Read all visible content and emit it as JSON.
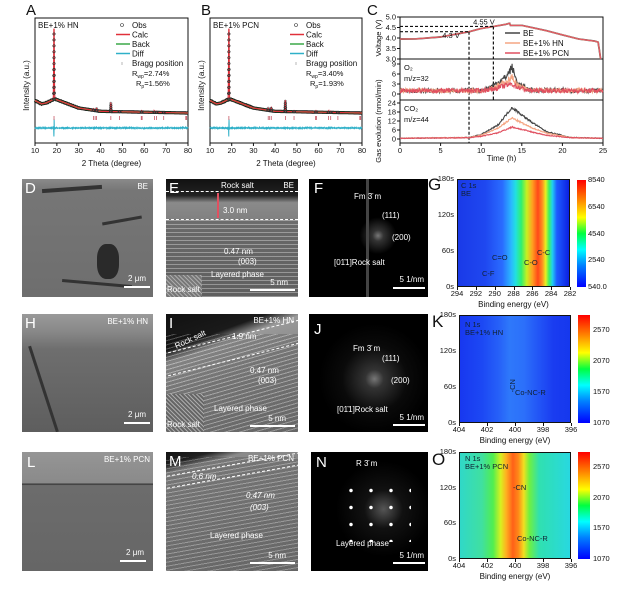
{
  "panel_labels": [
    "A",
    "B",
    "C",
    "D",
    "E",
    "F",
    "G",
    "H",
    "I",
    "J",
    "K",
    "L",
    "M",
    "N",
    "O"
  ],
  "colors": {
    "obs": "#333333",
    "calc": "#e0303a",
    "back": "#3aa848",
    "diff": "#2fb0c8",
    "bragg": "#c04050",
    "BE": "#444444",
    "HN": "#f4a582",
    "PCN": "#e05060"
  },
  "chart_data": [
    {
      "id": "A",
      "type": "line",
      "sample_label": "BE+1% HN",
      "xlabel": "2 Theta (degree)",
      "ylabel": "Intensity (a.u.)",
      "xlim": [
        10,
        80
      ],
      "xticks": [
        "10",
        "20",
        "30",
        "40",
        "50",
        "60",
        "70",
        "80"
      ],
      "legend": [
        "Obs",
        "Calc",
        "Back",
        "Diff",
        "Bragg position"
      ],
      "legend_position": "top-right",
      "rwp": "R_wp=2.74%",
      "rp": "R_p=1.56%",
      "background": [
        [
          10,
          15
        ],
        [
          13,
          11
        ],
        [
          15,
          12
        ],
        [
          19,
          17
        ],
        [
          24,
          12
        ],
        [
          30,
          6
        ],
        [
          40,
          2
        ],
        [
          80,
          0
        ]
      ],
      "peaks": [
        [
          18.7,
          100
        ],
        [
          36.8,
          2
        ],
        [
          38.2,
          3
        ],
        [
          44.7,
          10
        ],
        [
          48.7,
          1
        ],
        [
          58.8,
          2
        ],
        [
          64.6,
          2
        ],
        [
          65.6,
          1.5
        ],
        [
          68.9,
          1
        ]
      ],
      "bragg_positions": [
        18.7,
        36.8,
        37.5,
        38.2,
        44.7,
        48.7,
        58.6,
        59.0,
        64.6,
        65.6,
        68.9,
        79.0,
        79.4
      ]
    },
    {
      "id": "B",
      "type": "line",
      "sample_label": "BE+1% PCN",
      "xlabel": "2 Theta (degree)",
      "ylabel": "Intensity (a.u.)",
      "xlim": [
        10,
        80
      ],
      "xticks": [
        "10",
        "20",
        "30",
        "40",
        "50",
        "60",
        "70",
        "80"
      ],
      "legend": [
        "Obs",
        "Calc",
        "Back",
        "Diff",
        "Bragg position"
      ],
      "legend_position": "top-right",
      "rwp": "R_wp=3.40%",
      "rp": "R_p=1.93%",
      "background": [
        [
          10,
          15
        ],
        [
          13,
          11
        ],
        [
          15,
          12
        ],
        [
          19,
          17
        ],
        [
          24,
          12
        ],
        [
          30,
          6
        ],
        [
          40,
          2
        ],
        [
          80,
          0
        ]
      ],
      "peaks": [
        [
          18.7,
          100
        ],
        [
          36.8,
          2.5
        ],
        [
          38.2,
          4
        ],
        [
          44.7,
          13
        ],
        [
          48.7,
          1.5
        ],
        [
          58.8,
          2
        ],
        [
          64.6,
          2
        ],
        [
          65.6,
          1.5
        ],
        [
          68.9,
          1
        ]
      ],
      "bragg_positions": [
        18.7,
        36.8,
        37.5,
        38.2,
        44.7,
        48.7,
        58.6,
        59.0,
        64.6,
        65.6,
        68.9,
        79.0,
        79.4
      ]
    },
    {
      "id": "C",
      "type": "line",
      "xlabel": "Time (h)",
      "xlim": [
        0,
        25
      ],
      "xticks": [
        "0",
        "5",
        "10",
        "15",
        "20",
        "25"
      ],
      "voltage": {
        "ylabel": "Voltage (V)",
        "ylim": [
          3.0,
          5.0
        ],
        "yticks": [
          "3.0",
          "3.5",
          "4.0",
          "4.5",
          "5.0"
        ],
        "x": [
          0,
          2,
          5,
          8.5,
          10,
          11.5,
          13,
          13.5,
          13.6,
          15,
          18,
          20,
          22,
          24,
          24.4,
          24.6,
          24.7
        ],
        "y": [
          3.95,
          3.96,
          4.05,
          4.3,
          4.45,
          4.55,
          4.65,
          4.7,
          4.6,
          4.6,
          4.35,
          4.15,
          3.95,
          3.85,
          3.8,
          3.3,
          3.0
        ],
        "annotations": [
          "4.55 V",
          "4.3 V"
        ]
      },
      "gas_ylabel": "Gas evolution (nmol/min)",
      "o2": {
        "label": "O₂",
        "mz": "m/z=32",
        "ylim": [
          0,
          9
        ],
        "yticks": [
          "0",
          "3",
          "6",
          "9"
        ],
        "series": [
          {
            "name": "BE",
            "x": [
              0,
              10,
              11.5,
              13,
              13.8,
              14.5,
              16,
              25
            ],
            "y": [
              1,
              1,
              2.5,
              5,
              8,
              3,
              1.2,
              1
            ]
          },
          {
            "name": "BE+1% HN",
            "x": [
              0,
              10,
              11.5,
              13,
              13.8,
              14.5,
              16,
              25
            ],
            "y": [
              1,
              1,
              2,
              3.5,
              5,
              2.5,
              1.1,
              1
            ]
          },
          {
            "name": "BE+1% PCN",
            "x": [
              0,
              10,
              11.5,
              13,
              13.8,
              14.5,
              16,
              25
            ],
            "y": [
              1,
              1,
              1.5,
              2.5,
              3,
              2,
              1,
              1
            ]
          }
        ]
      },
      "co2": {
        "label": "CO₂",
        "mz": "m/z=44",
        "ylim": [
          0,
          24
        ],
        "yticks": [
          "0",
          "6",
          "12",
          "18",
          "24"
        ],
        "series": [
          {
            "name": "BE",
            "x": [
              0,
              8.5,
              10,
              12,
              13.8,
              16,
              18,
              21,
              25
            ],
            "y": [
              0.5,
              1,
              3,
              9,
              21,
              12,
              5,
              1,
              0.5
            ]
          },
          {
            "name": "BE+1% HN",
            "x": [
              0,
              8.5,
              10,
              12,
              13.8,
              16,
              18,
              21,
              25
            ],
            "y": [
              0.5,
              1,
              2.5,
              7,
              14,
              8,
              4,
              1,
              0.5
            ]
          },
          {
            "name": "BE+1% PCN",
            "x": [
              0,
              8.5,
              10,
              12,
              13.8,
              16,
              18,
              21,
              25
            ],
            "y": [
              0.5,
              0.8,
              1.8,
              4,
              8,
              5,
              2.5,
              0.8,
              0.5
            ]
          }
        ]
      },
      "legend": [
        "BE",
        "BE+1% HN",
        "BE+1% PCN"
      ],
      "legend_position": "top-right"
    },
    {
      "id": "G",
      "type": "heatmap",
      "core": "C 1s",
      "sample": "BE",
      "xlabel": "Binding energy (eV)",
      "xlim": [
        294,
        282
      ],
      "xticks": [
        "294",
        "292",
        "290",
        "288",
        "286",
        "284",
        "282"
      ],
      "yticks": [
        "0s",
        "60s",
        "120s",
        "180s"
      ],
      "colorbar_ticks": [
        "540.0",
        "2540",
        "4540",
        "6540",
        "8540"
      ],
      "peak_labels": [
        "C-F",
        "C=O",
        "C-O",
        "C-C"
      ]
    },
    {
      "id": "K",
      "type": "heatmap",
      "core": "N 1s",
      "sample": "BE+1% HN",
      "xlabel": "Binding energy (eV)",
      "xlim": [
        404,
        396
      ],
      "xticks": [
        "404",
        "402",
        "400",
        "398",
        "396"
      ],
      "yticks": [
        "0s",
        "60s",
        "120s",
        "180s"
      ],
      "colorbar_ticks": [
        "1070",
        "1570",
        "2070",
        "2570"
      ],
      "peak_labels": [
        "-CN",
        "Co-NC-R"
      ]
    },
    {
      "id": "O",
      "type": "heatmap",
      "core": "N 1s",
      "sample": "BE+1% PCN",
      "xlabel": "Binding energy (eV)",
      "xlim": [
        404,
        396
      ],
      "xticks": [
        "404",
        "402",
        "400",
        "398",
        "396"
      ],
      "yticks": [
        "0s",
        "60s",
        "120s",
        "180s"
      ],
      "colorbar_ticks": [
        "1070",
        "1570",
        "2070",
        "2570"
      ],
      "peak_labels": [
        "-CN",
        "Co-NC-R"
      ]
    }
  ],
  "images": {
    "D": {
      "sample": "BE",
      "scale": "2 μm"
    },
    "E": {
      "sample": "BE",
      "rock_salt": "Rock salt",
      "thickness": "3.0 nm",
      "spacing": "0.47 nm",
      "plane": "(003)",
      "phase": "Layered phase",
      "inset": "Rock salt",
      "scale": "5 nm"
    },
    "F": {
      "group": "Fm 3̄ m",
      "spot1": "(111)",
      "spot2": "(200)",
      "zone": "[01̄1]Rock salt",
      "scale": "5 1/nm"
    },
    "H": {
      "sample": "BE+1% HN",
      "scale": "2 μm"
    },
    "I": {
      "sample": "BE+1% HN",
      "rock_salt": "Rock salt",
      "thickness": "1.9 nm",
      "spacing": "0.47 nm",
      "plane": "(003)",
      "phase": "Layered phase",
      "inset": "Rock salt",
      "scale": "5 nm"
    },
    "J": {
      "group": "Fm 3̄ m",
      "spot1": "(111)",
      "spot2": "(200)",
      "zone": "[01̄1]Rock salt",
      "scale": "5 1/nm"
    },
    "L": {
      "sample": "BE+1% PCN",
      "scale": "2 μm"
    },
    "M": {
      "sample": "BE+1% PCN",
      "thickness": "0.6 nm",
      "spacing": "0.47 nm",
      "plane": "(003)",
      "phase": "Layered phase",
      "scale": "5 nm"
    },
    "N": {
      "group": "R 3̄ m",
      "phase": "Layered phase",
      "scale": "5 1/nm"
    }
  }
}
